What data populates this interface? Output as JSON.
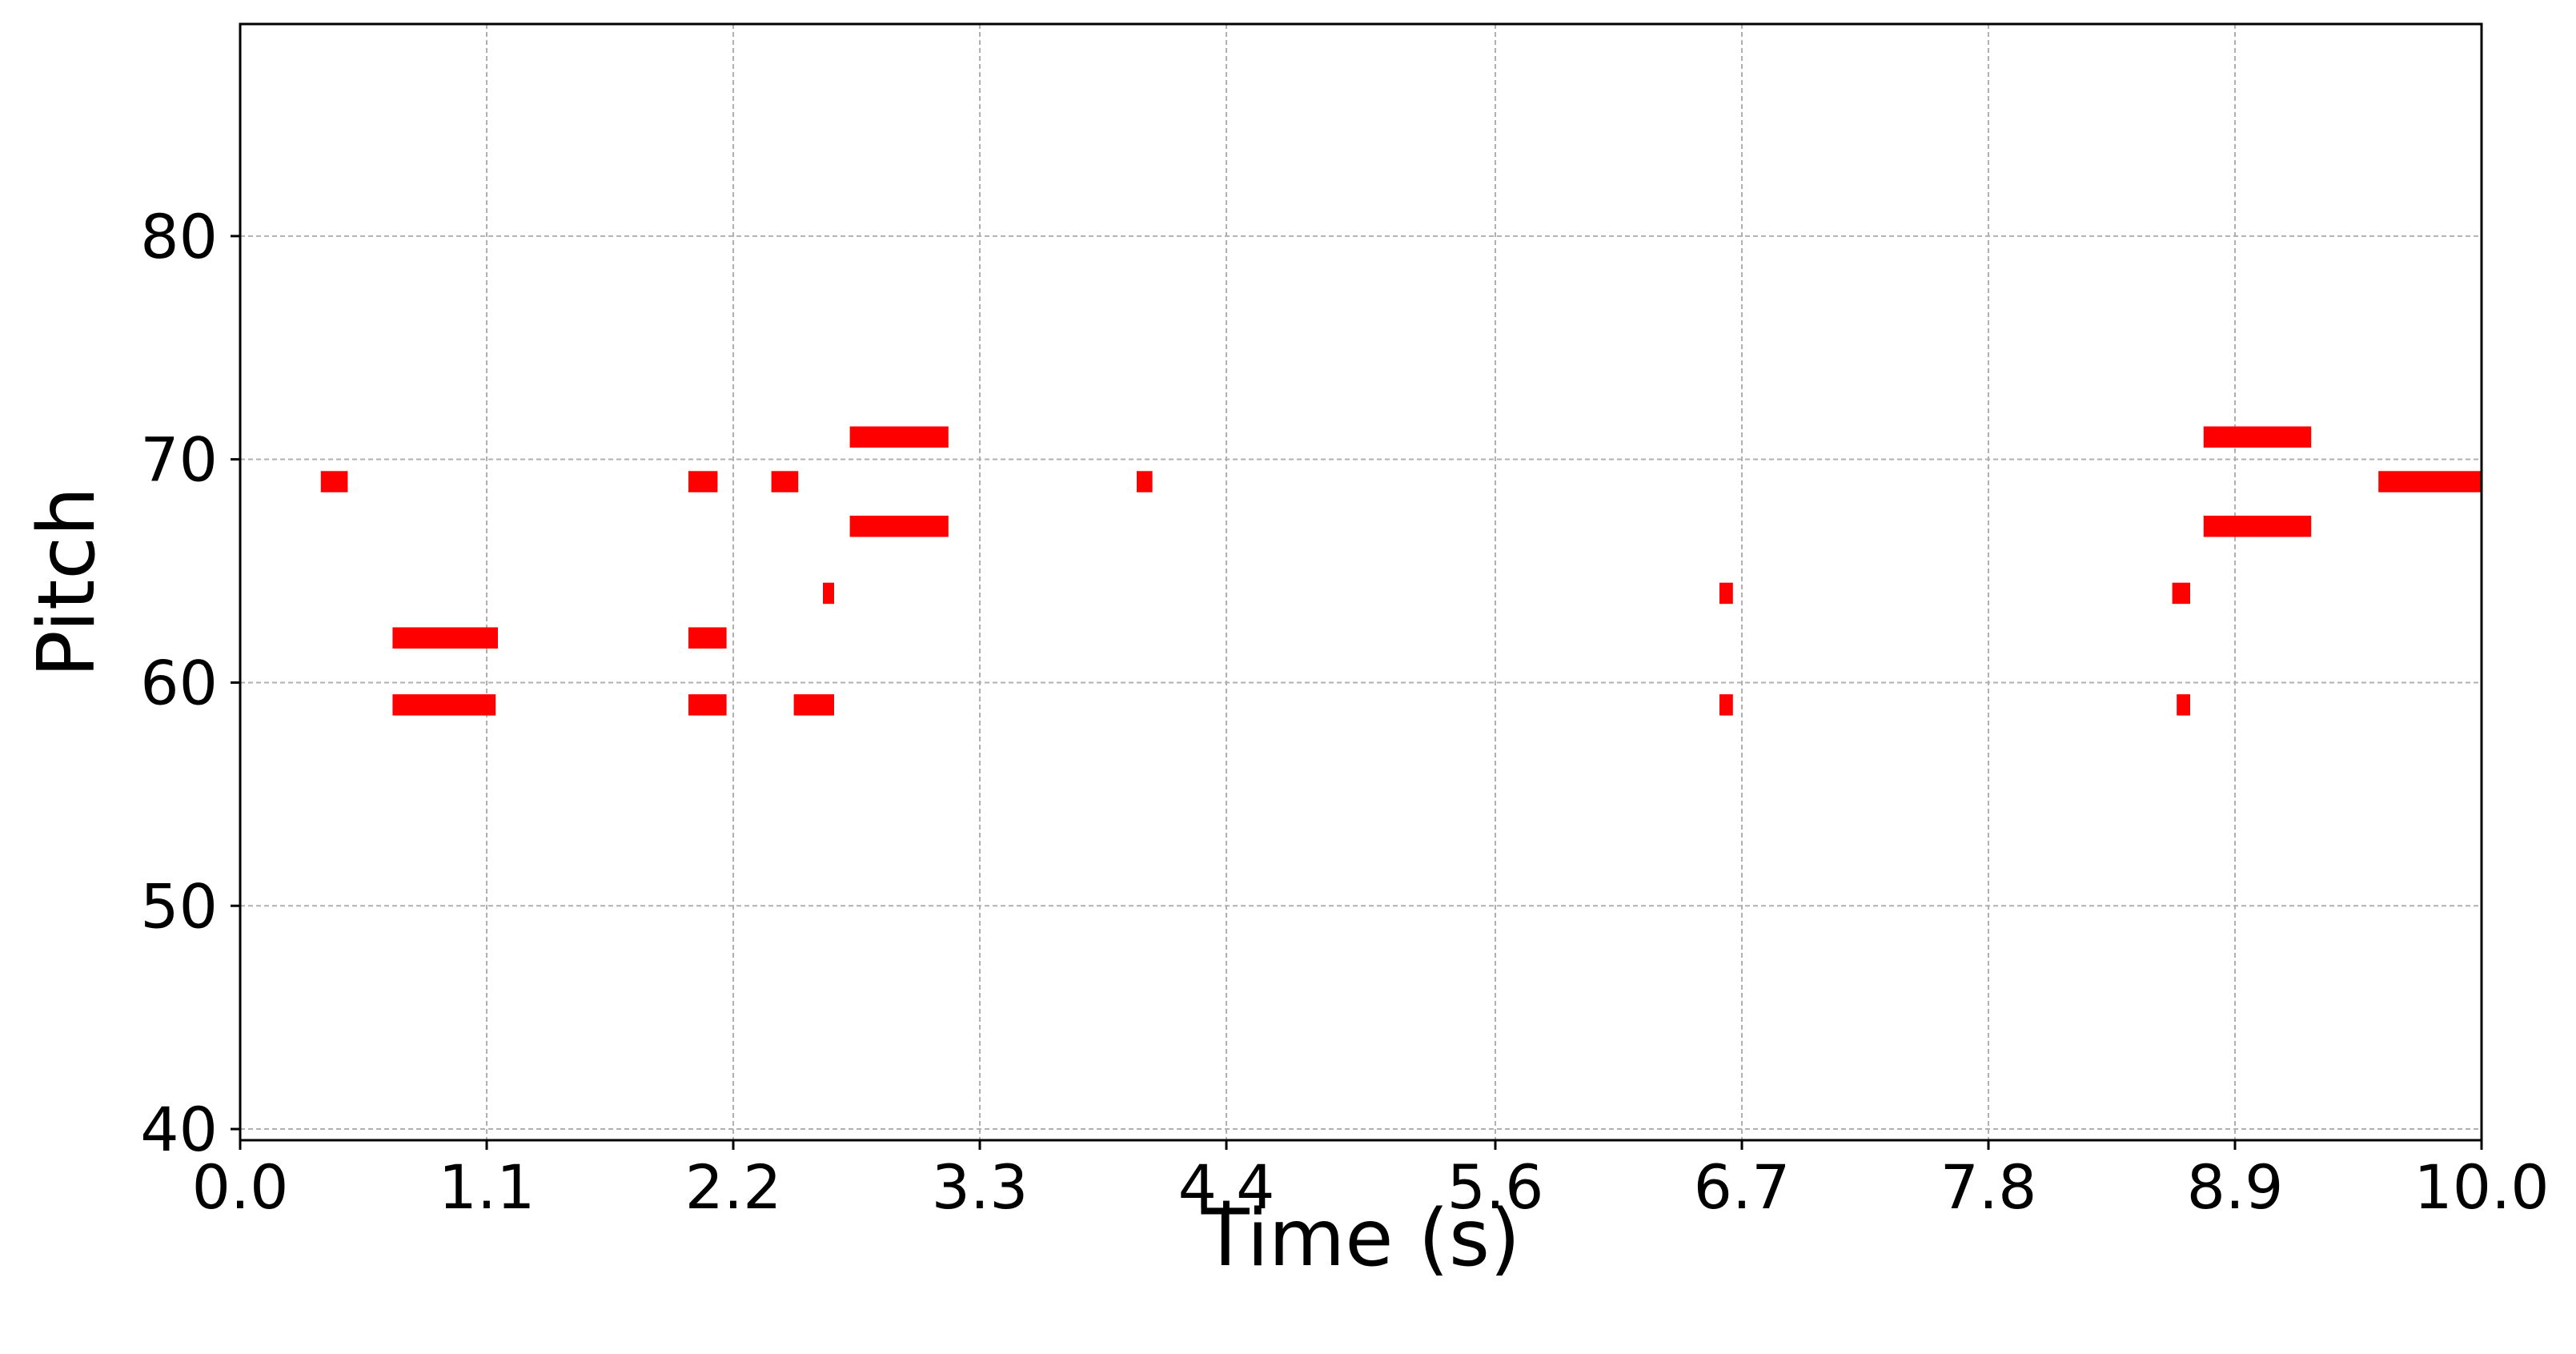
{
  "chart_data": {
    "type": "pianoroll",
    "title": "",
    "xlabel": "Time (s)",
    "ylabel": "Pitch",
    "xlim": [
      0.0,
      10.0
    ],
    "ylim": [
      39.5,
      89.5
    ],
    "xticks": [
      0.0,
      1.1,
      2.2,
      3.3,
      4.4,
      5.6,
      6.7,
      7.8,
      8.9,
      10.0
    ],
    "xtick_labels": [
      "0.0",
      "1.1",
      "2.2",
      "3.3",
      "4.4",
      "5.6",
      "6.7",
      "7.8",
      "8.9",
      "10.0"
    ],
    "yticks": [
      40,
      50,
      60,
      70,
      80
    ],
    "ytick_labels": [
      "40",
      "50",
      "60",
      "70",
      "80"
    ],
    "grid": true,
    "note_color": "#ff0000",
    "notes": [
      {
        "pitch": 69,
        "start": 0.36,
        "end": 0.48
      },
      {
        "pitch": 62,
        "start": 0.68,
        "end": 1.15
      },
      {
        "pitch": 59,
        "start": 0.68,
        "end": 1.14
      },
      {
        "pitch": 69,
        "start": 2.0,
        "end": 2.13
      },
      {
        "pitch": 62,
        "start": 2.0,
        "end": 2.17
      },
      {
        "pitch": 59,
        "start": 2.0,
        "end": 2.17
      },
      {
        "pitch": 69,
        "start": 2.37,
        "end": 2.49
      },
      {
        "pitch": 59,
        "start": 2.47,
        "end": 2.65
      },
      {
        "pitch": 64,
        "start": 2.6,
        "end": 2.65
      },
      {
        "pitch": 71,
        "start": 2.72,
        "end": 3.16
      },
      {
        "pitch": 67,
        "start": 2.72,
        "end": 3.16
      },
      {
        "pitch": 69,
        "start": 4.0,
        "end": 4.07
      },
      {
        "pitch": 64,
        "start": 6.6,
        "end": 6.66
      },
      {
        "pitch": 59,
        "start": 6.6,
        "end": 6.66
      },
      {
        "pitch": 64,
        "start": 8.62,
        "end": 8.7
      },
      {
        "pitch": 59,
        "start": 8.64,
        "end": 8.7
      },
      {
        "pitch": 71,
        "start": 8.76,
        "end": 9.24
      },
      {
        "pitch": 67,
        "start": 8.76,
        "end": 9.24
      },
      {
        "pitch": 69,
        "start": 9.54,
        "end": 10.0
      }
    ]
  }
}
